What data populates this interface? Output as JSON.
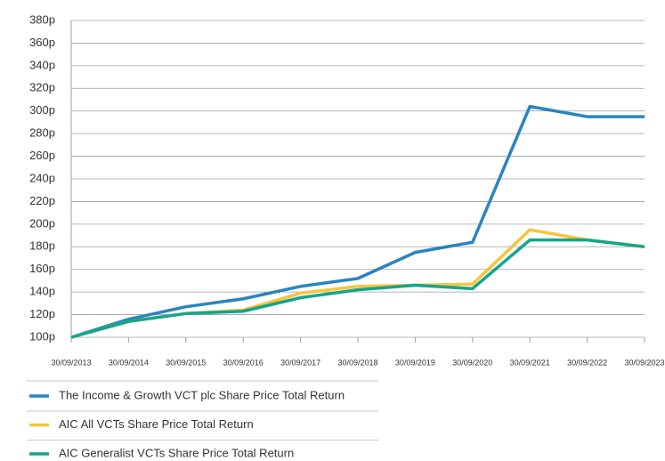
{
  "chart_data": {
    "type": "line",
    "categories": [
      "30/09/2013",
      "30/09/2014",
      "30/09/2015",
      "30/09/2016",
      "30/09/2017",
      "30/09/2018",
      "30/09/2019",
      "30/09/2020",
      "30/09/2021",
      "30/09/2022",
      "30/09/2023"
    ],
    "series": [
      {
        "name": "The Income & Growth VCT plc Share Price Total Return",
        "color": "#2a84c0",
        "values": [
          100,
          116,
          127,
          134,
          145,
          152,
          175,
          184,
          304,
          295,
          295
        ]
      },
      {
        "name": "AIC All VCTs Share Price Total Return",
        "color": "#f8c43d",
        "values": [
          100,
          114,
          121,
          124,
          139,
          145,
          146,
          147,
          195,
          186,
          180
        ]
      },
      {
        "name": "AIC Generalist VCTs Share Price Total Return",
        "color": "#14a58c",
        "values": [
          100,
          114,
          121,
          123,
          135,
          142,
          146,
          143,
          186,
          186,
          180
        ]
      }
    ],
    "ylim": [
      100,
      380
    ],
    "yticks": [
      {
        "value": 100,
        "label": "100p"
      },
      {
        "value": 120,
        "label": "120p"
      },
      {
        "value": 140,
        "label": "140p"
      },
      {
        "value": 160,
        "label": "160p"
      },
      {
        "value": 180,
        "label": "180p"
      },
      {
        "value": 200,
        "label": "200p"
      },
      {
        "value": 220,
        "label": "220p"
      },
      {
        "value": 240,
        "label": "240p"
      },
      {
        "value": 260,
        "label": "260p"
      },
      {
        "value": 280,
        "label": "280p"
      },
      {
        "value": 300,
        "label": "300p"
      },
      {
        "value": 320,
        "label": "320p"
      },
      {
        "value": 340,
        "label": "340p"
      },
      {
        "value": 360,
        "label": "360p"
      },
      {
        "value": 380,
        "label": "380p"
      }
    ],
    "grid": true
  }
}
